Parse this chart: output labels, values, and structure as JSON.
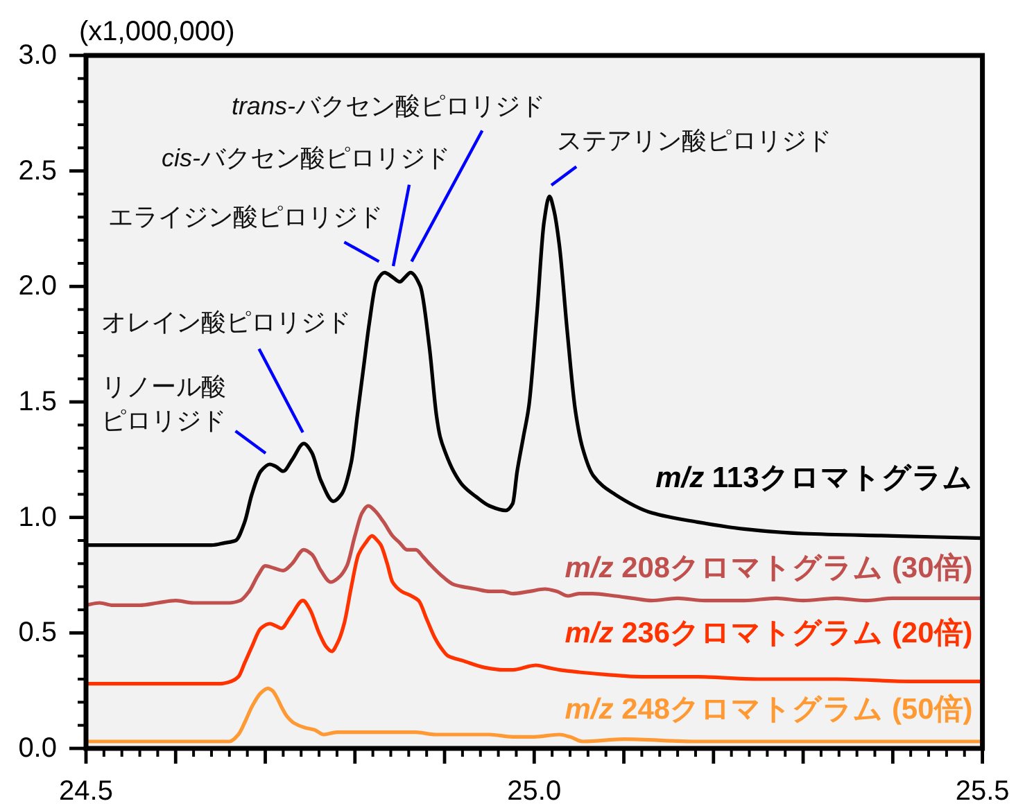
{
  "chart_data": {
    "type": "line",
    "ylabel": "(x1,000,000)",
    "xlim": [
      24.5,
      25.5
    ],
    "ylim": [
      0,
      3
    ],
    "xticks": [
      {
        "value": 24.5,
        "label": "24.5"
      },
      {
        "value": 24.6,
        "label": null
      },
      {
        "value": 24.7,
        "label": null
      },
      {
        "value": 24.8,
        "label": null
      },
      {
        "value": 24.9,
        "label": null
      },
      {
        "value": 25.0,
        "label": "25.0"
      },
      {
        "value": 25.1,
        "label": null
      },
      {
        "value": 25.2,
        "label": null
      },
      {
        "value": 25.3,
        "label": null
      },
      {
        "value": 25.4,
        "label": null
      },
      {
        "value": 25.5,
        "label": "25.5"
      }
    ],
    "yticks": [
      {
        "value": 0,
        "label": "0.0"
      },
      {
        "value": 0.5,
        "label": "0.5"
      },
      {
        "value": 1,
        "label": "1.0"
      },
      {
        "value": 1.5,
        "label": "1.5"
      },
      {
        "value": 2,
        "label": "2.0"
      },
      {
        "value": 2.5,
        "label": "2.5"
      },
      {
        "value": 3,
        "label": "3.0"
      }
    ],
    "series": [
      {
        "name": "m/z 113クロマトグラム",
        "color": "#000000",
        "x": [
          24.5,
          24.64,
          24.655,
          24.667,
          24.677,
          24.685,
          24.695,
          24.705,
          24.712,
          24.72,
          24.73,
          24.743,
          24.752,
          24.762,
          24.776,
          24.785,
          24.796,
          24.803,
          24.81,
          24.816,
          24.824,
          24.833,
          24.842,
          24.85,
          24.856,
          24.862,
          24.873,
          24.883,
          24.891,
          24.895,
          24.901,
          24.91,
          24.92,
          24.935,
          24.95,
          24.968,
          24.976,
          24.981,
          24.988,
          24.994,
          25.003,
          25.011,
          25.017,
          25.022,
          25.028,
          25.037,
          25.046,
          25.054,
          25.066,
          25.09,
          25.131,
          25.182,
          25.234,
          25.3,
          25.4,
          25.5
        ],
        "values": [
          0.88,
          0.88,
          0.89,
          0.9,
          0.98,
          1.1,
          1.2,
          1.23,
          1.22,
          1.2,
          1.25,
          1.32,
          1.28,
          1.16,
          1.07,
          1.1,
          1.24,
          1.45,
          1.66,
          1.84,
          2.02,
          2.06,
          2.04,
          2.02,
          2.04,
          2.06,
          2.0,
          1.74,
          1.44,
          1.35,
          1.28,
          1.2,
          1.14,
          1.09,
          1.05,
          1.03,
          1.06,
          1.2,
          1.35,
          1.48,
          1.88,
          2.28,
          2.39,
          2.33,
          2.18,
          1.8,
          1.46,
          1.3,
          1.18,
          1.1,
          1.02,
          0.98,
          0.95,
          0.93,
          0.92,
          0.91
        ]
      },
      {
        "name": "m/z 208クロマトグラム (30倍)",
        "color": "#c0504d",
        "x": [
          24.5,
          24.515,
          24.53,
          24.545,
          24.56,
          24.58,
          24.6,
          24.62,
          24.64,
          24.66,
          24.672,
          24.682,
          24.692,
          24.7,
          24.71,
          24.72,
          24.73,
          24.743,
          24.752,
          24.762,
          24.773,
          24.782,
          24.791,
          24.8,
          24.808,
          24.815,
          24.822,
          24.832,
          24.842,
          24.85,
          24.858,
          24.868,
          24.876,
          24.883,
          24.899,
          24.91,
          24.92,
          24.935,
          24.95,
          24.965,
          24.976,
          24.995,
          25.012,
          25.025,
          25.038,
          25.05,
          25.065,
          25.09,
          25.11,
          25.131,
          25.16,
          25.19,
          25.234,
          25.27,
          25.3,
          25.337,
          25.37,
          25.4,
          25.45,
          25.5
        ],
        "values": [
          0.62,
          0.63,
          0.62,
          0.62,
          0.62,
          0.63,
          0.64,
          0.63,
          0.63,
          0.63,
          0.64,
          0.68,
          0.75,
          0.79,
          0.78,
          0.77,
          0.8,
          0.86,
          0.84,
          0.77,
          0.72,
          0.74,
          0.79,
          0.92,
          1.02,
          1.05,
          1.03,
          0.98,
          0.92,
          0.89,
          0.86,
          0.86,
          0.83,
          0.8,
          0.74,
          0.71,
          0.7,
          0.69,
          0.68,
          0.68,
          0.67,
          0.68,
          0.69,
          0.68,
          0.66,
          0.67,
          0.67,
          0.66,
          0.65,
          0.64,
          0.65,
          0.64,
          0.64,
          0.65,
          0.64,
          0.65,
          0.64,
          0.65,
          0.65,
          0.65
        ]
      },
      {
        "name": "m/z 236クロマトグラム (20倍)",
        "color": "#ff3300",
        "x": [
          24.5,
          24.55,
          24.6,
          24.65,
          24.662,
          24.67,
          24.677,
          24.685,
          24.695,
          24.705,
          24.712,
          24.718,
          24.728,
          24.742,
          24.75,
          24.76,
          24.768,
          24.774,
          24.781,
          24.788,
          24.796,
          24.804,
          24.812,
          24.819,
          24.825,
          24.829,
          24.836,
          24.842,
          24.852,
          24.863,
          24.871,
          24.88,
          24.889,
          24.897,
          24.904,
          24.92,
          24.945,
          24.965,
          24.976,
          25.002,
          25.015,
          25.028,
          25.05,
          25.079,
          25.12,
          25.182,
          25.25,
          25.337,
          25.42,
          25.5
        ],
        "values": [
          0.28,
          0.28,
          0.28,
          0.28,
          0.29,
          0.31,
          0.37,
          0.44,
          0.52,
          0.54,
          0.53,
          0.52,
          0.57,
          0.64,
          0.6,
          0.5,
          0.44,
          0.42,
          0.46,
          0.54,
          0.7,
          0.84,
          0.89,
          0.92,
          0.9,
          0.88,
          0.8,
          0.72,
          0.68,
          0.66,
          0.64,
          0.56,
          0.48,
          0.43,
          0.4,
          0.38,
          0.35,
          0.34,
          0.34,
          0.36,
          0.35,
          0.34,
          0.33,
          0.32,
          0.31,
          0.31,
          0.3,
          0.3,
          0.29,
          0.29
        ]
      },
      {
        "name": "m/z 248クロマトグラム (50倍)",
        "color": "#ff9933",
        "x": [
          24.5,
          24.55,
          24.6,
          24.64,
          24.66,
          24.67,
          24.678,
          24.685,
          24.695,
          24.703,
          24.708,
          24.713,
          24.718,
          24.724,
          24.732,
          24.744,
          24.755,
          24.765,
          24.78,
          24.816,
          24.84,
          24.868,
          24.89,
          24.92,
          24.95,
          24.976,
          25.0,
          25.028,
          25.04,
          25.054,
          25.1,
          25.182,
          25.3,
          25.4,
          25.5
        ],
        "values": [
          0.03,
          0.03,
          0.03,
          0.03,
          0.03,
          0.06,
          0.12,
          0.18,
          0.24,
          0.26,
          0.25,
          0.22,
          0.18,
          0.14,
          0.11,
          0.09,
          0.08,
          0.06,
          0.07,
          0.07,
          0.07,
          0.07,
          0.06,
          0.06,
          0.06,
          0.05,
          0.05,
          0.06,
          0.05,
          0.03,
          0.04,
          0.03,
          0.03,
          0.03,
          0.03
        ]
      }
    ],
    "annotations": [
      {
        "text": "リノール酸ピロリジド",
        "x": 24.705,
        "y": 1.23
      },
      {
        "text": "オレイン酸ピロリジド",
        "x": 24.743,
        "y": 1.32
      },
      {
        "text": "エライジン酸ピロリジド",
        "x": 24.833,
        "y": 2.06
      },
      {
        "text": "cis-バクセン酸ピロリジド",
        "x": 24.842,
        "y": 2.04
      },
      {
        "text": "trans-バクセン酸ピロリジド",
        "x": 24.862,
        "y": 2.06
      },
      {
        "text": "ステアリン酸ピロリジド",
        "x": 25.017,
        "y": 2.39
      }
    ]
  }
}
